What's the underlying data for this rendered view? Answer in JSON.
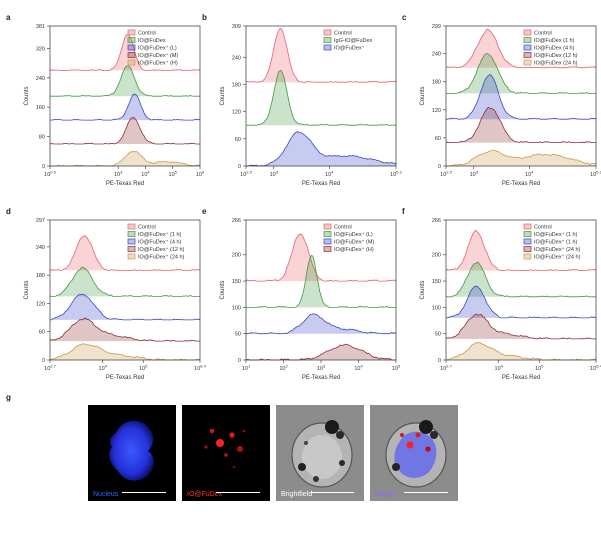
{
  "colors": {
    "control": "#e8626a",
    "green": "#3f9a3f",
    "blue": "#3a46c8",
    "darkred": "#8e2f36",
    "tan": "#c99a4f",
    "axis": "#333333"
  },
  "chart_data": [
    {
      "id": "a",
      "type": "histogram",
      "panel_label": "a",
      "xlabel": "PE-Texas Red",
      "ylabel": "Counts",
      "x_scale": "log",
      "xlim_log10": [
        0.5,
        6
      ],
      "x_ticks": [
        {
          "label": "10^0.5",
          "v": 0.5
        },
        {
          "label": "10^3",
          "v": 3
        },
        {
          "label": "10^4",
          "v": 4
        },
        {
          "label": "10^5",
          "v": 5
        },
        {
          "label": "10^6",
          "v": 6
        }
      ],
      "y_ticks": [
        0,
        80,
        160,
        240,
        320,
        381
      ],
      "ylim": [
        0,
        381
      ],
      "legend": [
        {
          "text": "Control",
          "color": "control"
        },
        {
          "text": "IO@FuDex",
          "color": "green"
        },
        {
          "text": "IO@FuDex⁺ (L)",
          "color": "blue"
        },
        {
          "text": "IO@FuDex⁺ (M)",
          "color": "darkred"
        },
        {
          "text": "IO@FuDex⁺ (H)",
          "color": "tan"
        }
      ],
      "series": [
        {
          "color": "control",
          "baseline": 260,
          "peak_height": 100,
          "center": 3.35,
          "width": 0.22
        },
        {
          "color": "green",
          "baseline": 190,
          "peak_height": 82,
          "center": 3.35,
          "width": 0.25
        },
        {
          "color": "blue",
          "baseline": 125,
          "peak_height": 70,
          "center": 3.6,
          "width": 0.22
        },
        {
          "color": "darkred",
          "baseline": 60,
          "peak_height": 72,
          "center": 3.55,
          "width": 0.25
        },
        {
          "color": "tan",
          "baseline": 0,
          "peak_height": 40,
          "center": 3.55,
          "width": 0.3,
          "tail": {
            "center": 4.8,
            "height": 12,
            "width": 0.5
          }
        }
      ]
    },
    {
      "id": "b",
      "type": "histogram",
      "panel_label": "b",
      "xlabel": "PE-Texas Red",
      "ylabel": "Counts",
      "x_scale": "log",
      "xlim_log10": [
        2.5,
        5.2
      ],
      "x_ticks": [
        {
          "label": "10^2.5",
          "v": 2.5
        },
        {
          "label": "10^3",
          "v": 3
        },
        {
          "label": "10^4",
          "v": 4
        },
        {
          "label": "10^5.2",
          "v": 5.2
        }
      ],
      "y_ticks": [
        0,
        60,
        120,
        180,
        240,
        309
      ],
      "ylim": [
        0,
        309
      ],
      "legend": [
        {
          "text": "Control",
          "color": "control"
        },
        {
          "text": "IgG-IO@FuDex",
          "color": "green"
        },
        {
          "text": "IO@FuDex⁺",
          "color": "blue"
        }
      ],
      "series": [
        {
          "color": "control",
          "baseline": 185,
          "peak_height": 120,
          "center": 3.12,
          "width": 0.12
        },
        {
          "color": "green",
          "baseline": 90,
          "peak_height": 120,
          "center": 3.12,
          "width": 0.12
        },
        {
          "color": "blue",
          "baseline": 0,
          "peak_height": 70,
          "center": 3.45,
          "width": 0.22,
          "tail": {
            "center": 4.3,
            "height": 22,
            "width": 0.5
          }
        }
      ]
    },
    {
      "id": "c",
      "type": "histogram",
      "panel_label": "c",
      "xlabel": "PE-Texas Red",
      "ylabel": "Counts",
      "x_scale": "log",
      "xlim_log10": [
        2.5,
        5.2
      ],
      "x_ticks": [
        {
          "label": "10^2.5",
          "v": 2.5
        },
        {
          "label": "10^3",
          "v": 3
        },
        {
          "label": "10^4",
          "v": 4
        },
        {
          "label": "10^5.2",
          "v": 5.2
        }
      ],
      "y_ticks": [
        0,
        60,
        120,
        180,
        240,
        299
      ],
      "ylim": [
        0,
        299
      ],
      "legend": [
        {
          "text": "Control",
          "color": "control"
        },
        {
          "text": "IO@FuDex (1 h)",
          "color": "green"
        },
        {
          "text": "IO@FuDex (4 h)",
          "color": "blue"
        },
        {
          "text": "IO@FuDex (12 h)",
          "color": "darkred"
        },
        {
          "text": "IO@FuDex (24 h)",
          "color": "tan"
        }
      ],
      "series": [
        {
          "color": "control",
          "baseline": 210,
          "peak_height": 80,
          "center": 3.25,
          "width": 0.18
        },
        {
          "color": "green",
          "baseline": 155,
          "peak_height": 85,
          "center": 3.25,
          "width": 0.18
        },
        {
          "color": "blue",
          "baseline": 100,
          "peak_height": 95,
          "center": 3.28,
          "width": 0.16
        },
        {
          "color": "darkred",
          "baseline": 50,
          "peak_height": 75,
          "center": 3.3,
          "width": 0.18
        },
        {
          "color": "tan",
          "baseline": 0,
          "peak_height": 30,
          "center": 3.3,
          "width": 0.25,
          "tail": {
            "center": 4.3,
            "height": 25,
            "width": 0.45
          }
        }
      ]
    },
    {
      "id": "d",
      "type": "histogram",
      "panel_label": "d",
      "xlabel": "PE-Texas Red",
      "ylabel": "Counts",
      "x_scale": "log",
      "xlim_log10": [
        2.7,
        6.4
      ],
      "x_ticks": [
        {
          "label": "10^2.7",
          "v": 2.7
        },
        {
          "label": "10^4",
          "v": 4
        },
        {
          "label": "10^5",
          "v": 5
        },
        {
          "label": "10^6.4",
          "v": 6.4
        }
      ],
      "y_ticks": [
        0,
        60,
        120,
        180,
        240,
        297
      ],
      "ylim": [
        0,
        297
      ],
      "legend": [
        {
          "text": "Control",
          "color": "control"
        },
        {
          "text": "IO@FuDex⁺ (1 h)",
          "color": "green"
        },
        {
          "text": "IO@FuDex⁺ (4 h)",
          "color": "blue"
        },
        {
          "text": "IO@FuDex⁺ (12 h)",
          "color": "darkred"
        },
        {
          "text": "IO@FuDex⁺ (24 h)",
          "color": "tan"
        }
      ],
      "series": [
        {
          "color": "control",
          "baseline": 190,
          "peak_height": 75,
          "center": 3.55,
          "width": 0.2
        },
        {
          "color": "green",
          "baseline": 135,
          "peak_height": 60,
          "center": 3.5,
          "width": 0.25
        },
        {
          "color": "blue",
          "baseline": 85,
          "peak_height": 55,
          "center": 3.5,
          "width": 0.28
        },
        {
          "color": "darkred",
          "baseline": 40,
          "peak_height": 45,
          "center": 3.5,
          "width": 0.3,
          "tail": {
            "center": 4.2,
            "height": 12,
            "width": 0.4
          }
        },
        {
          "color": "tan",
          "baseline": 0,
          "peak_height": 30,
          "center": 3.55,
          "width": 0.35,
          "tail": {
            "center": 4.3,
            "height": 10,
            "width": 0.5
          }
        }
      ]
    },
    {
      "id": "e",
      "type": "histogram",
      "panel_label": "e",
      "xlabel": "PE-Texas Red",
      "ylabel": "Counts",
      "x_scale": "log",
      "xlim_log10": [
        1,
        5
      ],
      "x_ticks": [
        {
          "label": "10^1",
          "v": 1
        },
        {
          "label": "10^2",
          "v": 2
        },
        {
          "label": "10^3",
          "v": 3
        },
        {
          "label": "10^4",
          "v": 4
        },
        {
          "label": "10^5",
          "v": 5
        }
      ],
      "y_ticks": [
        0,
        50,
        100,
        150,
        200,
        266
      ],
      "ylim": [
        0,
        266
      ],
      "legend": [
        {
          "text": "Control",
          "color": "control"
        },
        {
          "text": "IO@FuDex⁺ (L)",
          "color": "green"
        },
        {
          "text": "IO@FuDex⁺ (M)",
          "color": "blue"
        },
        {
          "text": "IO@FuDex⁺ (H)",
          "color": "darkred"
        }
      ],
      "series": [
        {
          "color": "control",
          "baseline": 150,
          "peak_height": 90,
          "center": 2.45,
          "width": 0.22
        },
        {
          "color": "green",
          "baseline": 100,
          "peak_height": 100,
          "center": 2.75,
          "width": 0.14
        },
        {
          "color": "blue",
          "baseline": 50,
          "peak_height": 35,
          "center": 2.8,
          "width": 0.3,
          "tail": {
            "center": 3.6,
            "height": 8,
            "width": 0.4
          }
        },
        {
          "color": "darkred",
          "baseline": 0,
          "peak_height": 28,
          "center": 3.65,
          "width": 0.45
        }
      ]
    },
    {
      "id": "f",
      "type": "histogram",
      "panel_label": "f",
      "xlabel": "PE-Texas Red",
      "ylabel": "Counts",
      "x_scale": "log",
      "xlim_log10": [
        2.7,
        6.4
      ],
      "x_ticks": [
        {
          "label": "10^2.7",
          "v": 2.7
        },
        {
          "label": "10^4",
          "v": 4
        },
        {
          "label": "10^5",
          "v": 5
        },
        {
          "label": "10^6.4",
          "v": 6.4
        }
      ],
      "y_ticks": [
        0,
        50,
        100,
        150,
        200,
        266
      ],
      "ylim": [
        0,
        266
      ],
      "legend": [
        {
          "text": "Control",
          "color": "control"
        },
        {
          "text": "IO@FuDex⁺ (1 h)",
          "color": "green"
        },
        {
          "text": "IO@FuDex⁺ (1 h)",
          "color": "blue"
        },
        {
          "text": "IO@FuDex⁺ (24 h)",
          "color": "darkred"
        },
        {
          "text": "IO@FuDex⁺ (24 h)",
          "color": "tan"
        }
      ],
      "series": [
        {
          "color": "control",
          "baseline": 170,
          "peak_height": 75,
          "center": 3.45,
          "width": 0.2
        },
        {
          "color": "green",
          "baseline": 120,
          "peak_height": 65,
          "center": 3.45,
          "width": 0.22
        },
        {
          "color": "blue",
          "baseline": 80,
          "peak_height": 60,
          "center": 3.45,
          "width": 0.22
        },
        {
          "color": "darkred",
          "baseline": 40,
          "peak_height": 45,
          "center": 3.45,
          "width": 0.26,
          "tail": {
            "center": 4.1,
            "height": 10,
            "width": 0.4
          }
        },
        {
          "color": "tan",
          "baseline": 0,
          "peak_height": 30,
          "center": 3.5,
          "width": 0.3,
          "tail": {
            "center": 4.2,
            "height": 8,
            "width": 0.4
          }
        }
      ]
    }
  ],
  "panel_g": {
    "label": "g",
    "images": [
      {
        "caption": "Nucleus",
        "caption_color": "#2a6cff",
        "kind": "nucleus"
      },
      {
        "caption": "IO@FuDex⁺",
        "caption_color": "#ff3030",
        "kind": "red"
      },
      {
        "caption": "Brightfield",
        "caption_color": "#ffffff",
        "kind": "brightfield"
      },
      {
        "caption": "Merge",
        "caption_color": "#9a66ff",
        "kind": "merge"
      }
    ]
  }
}
